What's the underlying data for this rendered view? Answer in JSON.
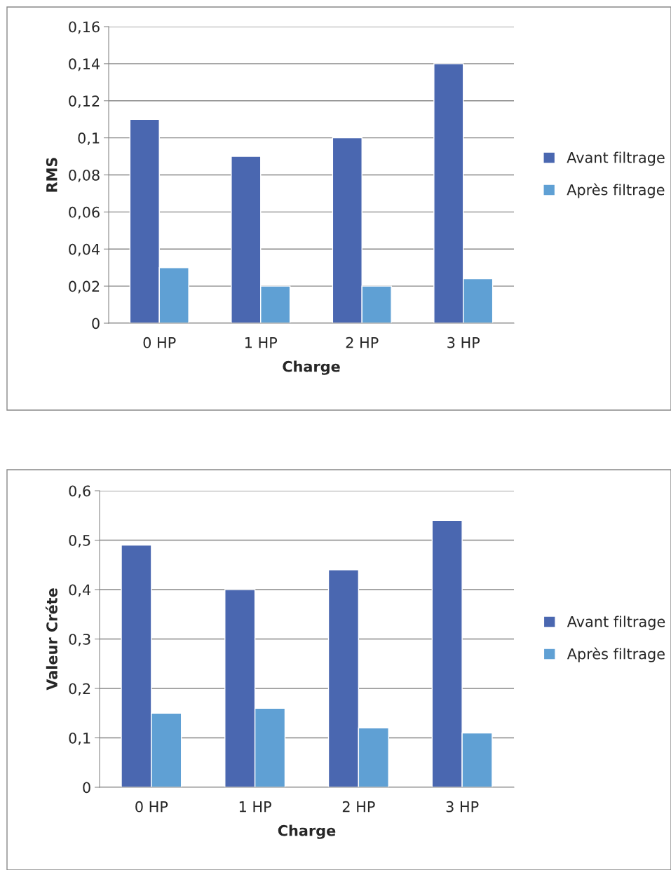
{
  "chart_data": [
    {
      "type": "bar",
      "xlabel": "Charge",
      "ylabel": "RMS",
      "categories": [
        "0 HP",
        "1 HP",
        "2 HP",
        "3 HP"
      ],
      "series": [
        {
          "name": "Avant filtrage",
          "color": "#4a67b0",
          "values": [
            0.11,
            0.09,
            0.1,
            0.14
          ]
        },
        {
          "name": "Après filtrage",
          "color": "#5fa0d4",
          "values": [
            0.03,
            0.02,
            0.02,
            0.024
          ]
        }
      ],
      "ylim": [
        0,
        0.16
      ],
      "yticks": [
        {
          "value": 0,
          "label": "0"
        },
        {
          "value": 0.02,
          "label": "0,02"
        },
        {
          "value": 0.04,
          "label": "0,04"
        },
        {
          "value": 0.06,
          "label": "0,06"
        },
        {
          "value": 0.08,
          "label": "0,08"
        },
        {
          "value": 0.1,
          "label": "0,1"
        },
        {
          "value": 0.12,
          "label": "0,12"
        },
        {
          "value": 0.14,
          "label": "0,14"
        },
        {
          "value": 0.16,
          "label": "0,16"
        }
      ],
      "grid": "y",
      "legend": "right"
    },
    {
      "type": "bar",
      "xlabel": "Charge",
      "ylabel": "Valeur Créte",
      "categories": [
        "0 HP",
        "1 HP",
        "2 HP",
        "3 HP"
      ],
      "series": [
        {
          "name": "Avant filtrage",
          "color": "#4a67b0",
          "values": [
            0.49,
            0.4,
            0.44,
            0.54
          ]
        },
        {
          "name": "Après filtrage",
          "color": "#5fa0d4",
          "values": [
            0.15,
            0.16,
            0.12,
            0.11
          ]
        }
      ],
      "ylim": [
        0,
        0.6
      ],
      "yticks": [
        {
          "value": 0,
          "label": "0"
        },
        {
          "value": 0.1,
          "label": "0,1"
        },
        {
          "value": 0.2,
          "label": "0,2"
        },
        {
          "value": 0.3,
          "label": "0,3"
        },
        {
          "value": 0.4,
          "label": "0,4"
        },
        {
          "value": 0.5,
          "label": "0,5"
        },
        {
          "value": 0.6,
          "label": "0,6"
        }
      ],
      "grid": "y",
      "legend": "right"
    }
  ]
}
